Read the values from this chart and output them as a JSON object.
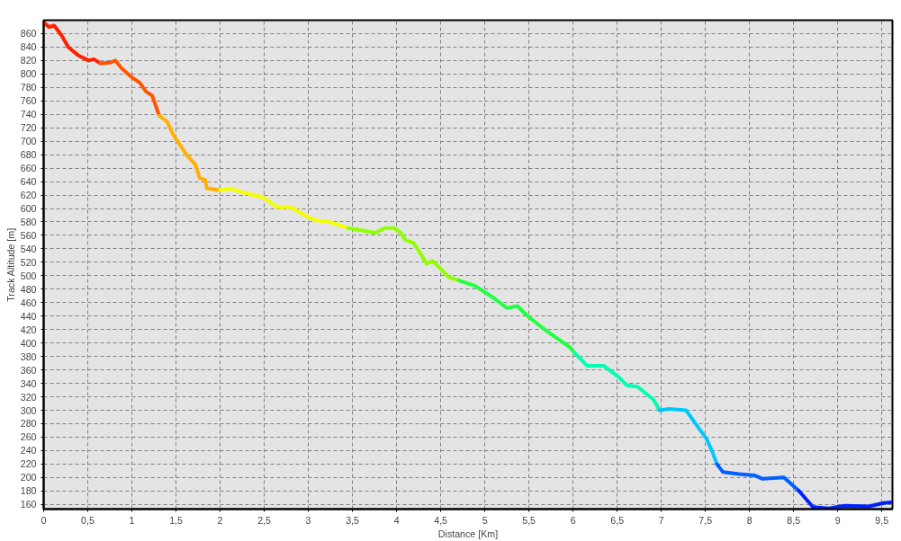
{
  "chart_data": {
    "type": "line",
    "xlabel": "Distance [Km]",
    "ylabel": "Track Altitude [m]",
    "xlim": [
      0,
      9.62
    ],
    "ylim": [
      153,
      880
    ],
    "xticks": [
      0,
      {
        "value": 0.5,
        "label": "0,5"
      },
      1,
      {
        "value": 1.5,
        "label": "1,5"
      },
      2,
      {
        "value": 2.5,
        "label": "2,5"
      },
      3,
      {
        "value": 3.5,
        "label": "3,5"
      },
      4,
      {
        "value": 4.5,
        "label": "4,5"
      },
      5,
      {
        "value": 5.5,
        "label": "5,5"
      },
      6,
      {
        "value": 6.5,
        "label": "6,5"
      },
      7,
      {
        "value": 7.5,
        "label": "7,5"
      },
      8,
      {
        "value": 8.5,
        "label": "8,5"
      },
      9,
      {
        "value": 9.5,
        "label": "9,5"
      }
    ],
    "yticks": [
      160,
      180,
      200,
      220,
      240,
      260,
      280,
      300,
      320,
      340,
      360,
      380,
      400,
      420,
      440,
      460,
      480,
      500,
      520,
      540,
      560,
      580,
      600,
      620,
      640,
      660,
      680,
      700,
      720,
      740,
      760,
      780,
      800,
      820,
      840,
      860
    ],
    "grid": true,
    "line_style": "solid",
    "series": [
      {
        "color": "#ff2000",
        "x": [
          0,
          0.06,
          0.12,
          0.2,
          0.28,
          0.39,
          0.51,
          0.57,
          0.64
        ],
        "values": [
          877,
          870,
          872,
          858,
          840,
          828,
          820,
          822,
          816
        ]
      },
      {
        "color": "#ff5500",
        "x": [
          0.64,
          0.75,
          0.815,
          0.88,
          0.99,
          1.09,
          1.16,
          1.23,
          1.31
        ],
        "values": [
          816,
          817,
          820,
          809,
          796,
          787,
          774,
          768,
          738
        ]
      },
      {
        "color": "#ffb000",
        "x": [
          1.31,
          1.4,
          1.47,
          1.62,
          1.72,
          1.77,
          1.83,
          1.85,
          2.0
        ],
        "values": [
          738,
          729,
          709,
          680,
          665,
          645,
          643,
          630,
          627
        ]
      },
      {
        "color": "#f5ff00",
        "x": [
          2.0,
          2.12,
          2.25,
          2.48,
          2.65,
          2.8,
          3.01,
          3.11,
          3.24,
          3.45
        ],
        "values": [
          627,
          630,
          624,
          617,
          602,
          602,
          586,
          582,
          580,
          571
        ]
      },
      {
        "color": "#90ff00",
        "x": [
          3.45,
          3.76,
          3.87,
          3.97,
          4.04,
          4.1,
          4.19,
          4.28,
          4.34,
          4.41,
          4.59,
          4.71
        ],
        "values": [
          571,
          564,
          571,
          571,
          565,
          553,
          549,
          531,
          518,
          522,
          498,
          493
        ]
      },
      {
        "color": "#20ff40",
        "x": [
          4.71,
          4.89,
          5.1,
          5.25,
          5.37,
          5.46,
          5.61,
          5.72,
          5.96,
          6.02
        ],
        "values": [
          493,
          485,
          467,
          452,
          455,
          443,
          427,
          416,
          394,
          385
        ]
      },
      {
        "color": "#00ffb0",
        "x": [
          6.02,
          6.08,
          6.16,
          6.35,
          6.52,
          6.61,
          6.73,
          6.91,
          6.98
        ],
        "values": [
          385,
          377,
          366,
          366,
          349,
          337,
          335,
          316,
          300
        ]
      },
      {
        "color": "#00c8ff",
        "x": [
          6.98,
          7.09,
          7.28,
          7.41,
          7.51,
          7.58,
          7.63
        ],
        "values": [
          300,
          302,
          300,
          276,
          258,
          238,
          220
        ]
      },
      {
        "color": "#0060ff",
        "x": [
          7.63,
          7.7,
          7.88,
          8.06,
          8.15,
          8.39,
          8.56
        ],
        "values": [
          220,
          208,
          205,
          203,
          198,
          200,
          180
        ]
      },
      {
        "color": "#0020ff",
        "x": [
          8.56,
          8.72,
          8.9,
          9.08,
          9.35,
          9.52,
          9.6
        ],
        "values": [
          180,
          156,
          154,
          158,
          157,
          162,
          163
        ]
      }
    ]
  }
}
